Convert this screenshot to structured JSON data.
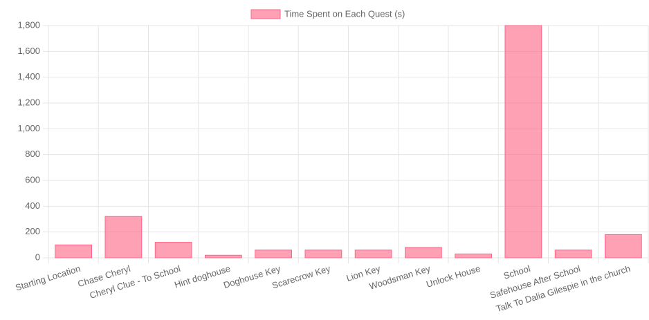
{
  "chart_data": {
    "type": "bar",
    "legend": "Time Spent on Each Quest (s)",
    "categories": [
      "Starting Location",
      "Chase Cheryl",
      "Cheryl Clue - To School",
      "Hint doghouse",
      "Doghouse Key",
      "Scarecrow Key",
      "Lion Key",
      "Woodsman Key",
      "Unlock House",
      "School",
      "Safehouse After School",
      "Talk To Dalia Gilespie in the church"
    ],
    "values": [
      100,
      320,
      120,
      20,
      60,
      60,
      60,
      80,
      30,
      1800,
      60,
      180
    ],
    "color": "rgba(255, 99, 132, 0.6)",
    "ylim": [
      0,
      1800
    ],
    "yticks": [
      0,
      200,
      400,
      600,
      800,
      {
        "value": 1000,
        "label": "1,000"
      },
      {
        "value": 1200,
        "label": "1,200"
      },
      {
        "value": 1400,
        "label": "1,400"
      },
      {
        "value": 1600,
        "label": "1,600"
      },
      {
        "value": 1800,
        "label": "1,800"
      }
    ],
    "grid": true
  }
}
